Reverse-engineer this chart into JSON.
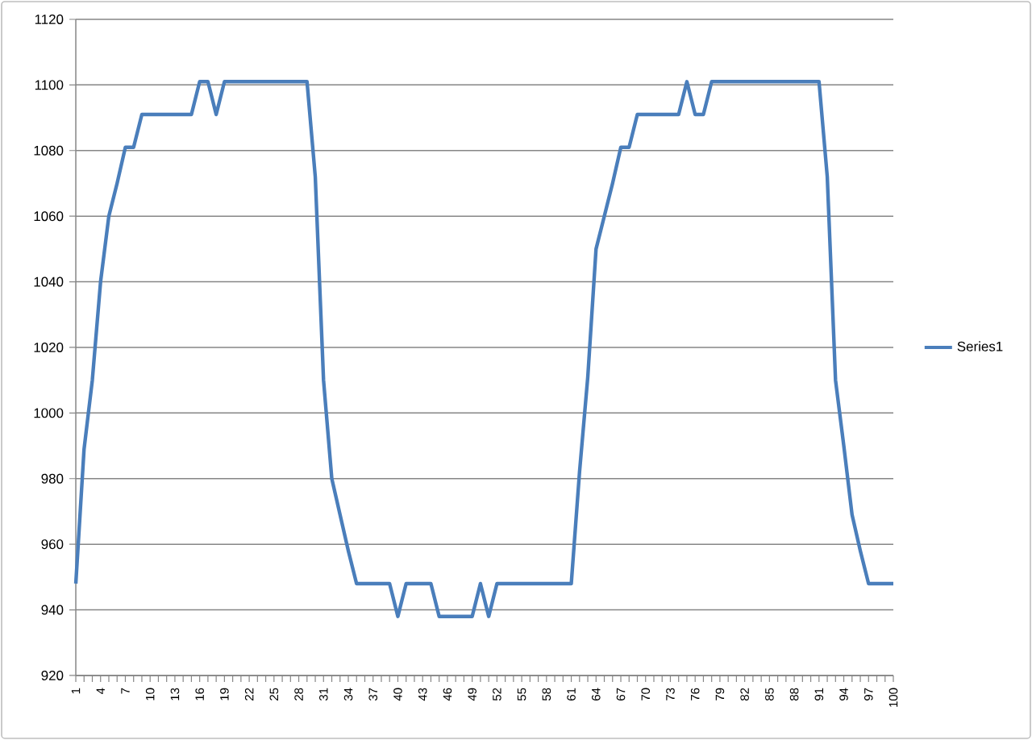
{
  "chart_data": {
    "type": "line",
    "categories": [
      "1",
      null,
      null,
      "4",
      null,
      null,
      "7",
      null,
      null,
      "10",
      null,
      null,
      "13",
      null,
      null,
      "16",
      null,
      null,
      "19",
      null,
      null,
      "22",
      null,
      null,
      "25",
      null,
      null,
      "28",
      null,
      null,
      "31",
      null,
      null,
      "34",
      null,
      null,
      "37",
      null,
      null,
      "40",
      null,
      null,
      "43",
      null,
      null,
      "46",
      null,
      null,
      "49",
      null,
      null,
      "52",
      null,
      null,
      "55",
      null,
      null,
      "58",
      null,
      null,
      "61",
      null,
      null,
      "64",
      null,
      null,
      "67",
      null,
      null,
      "70",
      null,
      null,
      "73",
      null,
      null,
      "76",
      null,
      null,
      "79",
      null,
      null,
      "82",
      null,
      null,
      "85",
      null,
      null,
      "88",
      null,
      null,
      "91",
      null,
      null,
      "94",
      null,
      null,
      "97",
      null,
      null,
      "100"
    ],
    "series": [
      {
        "name": "Series1",
        "color": "#4a7ebb",
        "values": [
          948,
          989,
          1010,
          1040,
          1060,
          1070,
          1081,
          1081,
          1091,
          1091,
          1091,
          1091,
          1091,
          1091,
          1091,
          1101,
          1101,
          1091,
          1101,
          1101,
          1101,
          1101,
          1101,
          1101,
          1101,
          1101,
          1101,
          1101,
          1101,
          1072,
          1010,
          980,
          969,
          958,
          948,
          948,
          948,
          948,
          948,
          938,
          948,
          948,
          948,
          948,
          938,
          938,
          938,
          938,
          938,
          948,
          938,
          948,
          948,
          948,
          948,
          948,
          948,
          948,
          948,
          948,
          948,
          982,
          1011,
          1050,
          1060,
          1070,
          1081,
          1081,
          1091,
          1091,
          1091,
          1091,
          1091,
          1091,
          1101,
          1091,
          1091,
          1101,
          1101,
          1101,
          1101,
          1101,
          1101,
          1101,
          1101,
          1101,
          1101,
          1101,
          1101,
          1101,
          1101,
          1072,
          1010,
          990,
          969,
          958,
          948,
          948,
          948,
          948
        ]
      }
    ],
    "ylim": [
      920,
      1120
    ],
    "yticks": [
      920,
      940,
      960,
      980,
      1000,
      1020,
      1040,
      1060,
      1080,
      1100,
      1120
    ],
    "grid": "y",
    "legend": "right",
    "marker": "none",
    "line_style": "solid"
  }
}
